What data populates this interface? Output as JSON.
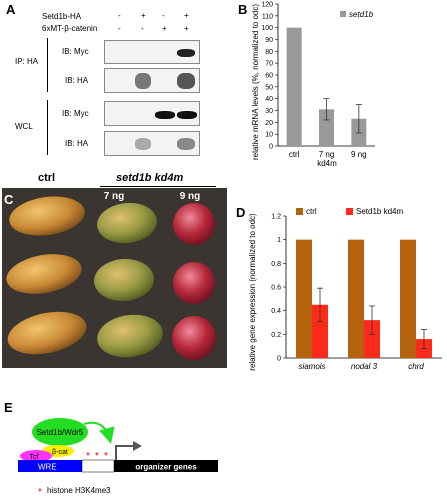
{
  "panels": {
    "a": "A",
    "b": "B",
    "c": "C",
    "d": "D",
    "e": "E"
  },
  "panel_a": {
    "row_labels": [
      "Setd1b-HA",
      "6xMT-β-catenin"
    ],
    "signs": [
      [
        "-",
        "+",
        "-",
        "+"
      ],
      [
        "-",
        "-",
        "+",
        "+"
      ]
    ],
    "ip_label": "IP: HA",
    "wcl_label": "WCL",
    "blot_labels": [
      "IB: Myc",
      "IB: HA",
      "IB: Myc",
      "IB: HA"
    ]
  },
  "panel_c": {
    "ctrl_label": "ctrl",
    "kd_label": "setd1b kd4m",
    "dose_labels": [
      "7 ng",
      "9 ng"
    ],
    "colors": {
      "background": "#3a3530",
      "ctrl": "#c98a35",
      "kd7": "#9a9b45",
      "kd9": "#b5283a"
    }
  },
  "panel_e": {
    "complex_label": "Setd1b/Wdr5",
    "bcat_label": "β-cat",
    "tcf_label": "Tcf",
    "wre_label": "WRE",
    "gene_label": "organizer genes",
    "legend_star": "*",
    "legend_text": "histone H3K4me3",
    "colors": {
      "complex": "#22dd22",
      "bcat": "#ffee00",
      "tcf": "#ff33ff",
      "wre": "#0000ff",
      "gene": "#000000",
      "star": "#ee0000"
    }
  },
  "chart_data": [
    {
      "type": "bar",
      "title": "",
      "legend": [
        "setd1b"
      ],
      "categories": [
        "ctrl",
        "7 ng",
        "9 ng"
      ],
      "values": [
        100,
        31,
        23
      ],
      "errors": [
        0,
        9,
        12
      ],
      "xlabel": "kd4m",
      "ylabel": "relative mRNA levels (%, normalized to odc)",
      "ylim": [
        0,
        120
      ],
      "yticks": [
        0,
        10,
        20,
        30,
        40,
        50,
        60,
        70,
        80,
        90,
        100,
        110,
        120
      ],
      "bar_color": "#999999",
      "grid": false,
      "legend_position": "top-right"
    },
    {
      "type": "bar",
      "title": "",
      "categories": [
        "siamois",
        "nodal 3",
        "chrd"
      ],
      "series": [
        {
          "name": "ctrl",
          "values": [
            1,
            1,
            1
          ],
          "errors": [
            0,
            0,
            0
          ],
          "color": "#b5620d"
        },
        {
          "name": "Setd1b kd4m",
          "values": [
            0.45,
            0.32,
            0.16
          ],
          "errors": [
            0.14,
            0.12,
            0.08
          ],
          "color": "#ff2a1a"
        }
      ],
      "xlabel": "",
      "ylabel": "relative gene expression (normalized to odc)",
      "ylim": [
        0,
        1.2
      ],
      "yticks": [
        "0",
        "0.2",
        "0.4",
        "0.6",
        "0.8",
        "1",
        "1.2"
      ],
      "grid": false,
      "legend_position": "top"
    }
  ]
}
